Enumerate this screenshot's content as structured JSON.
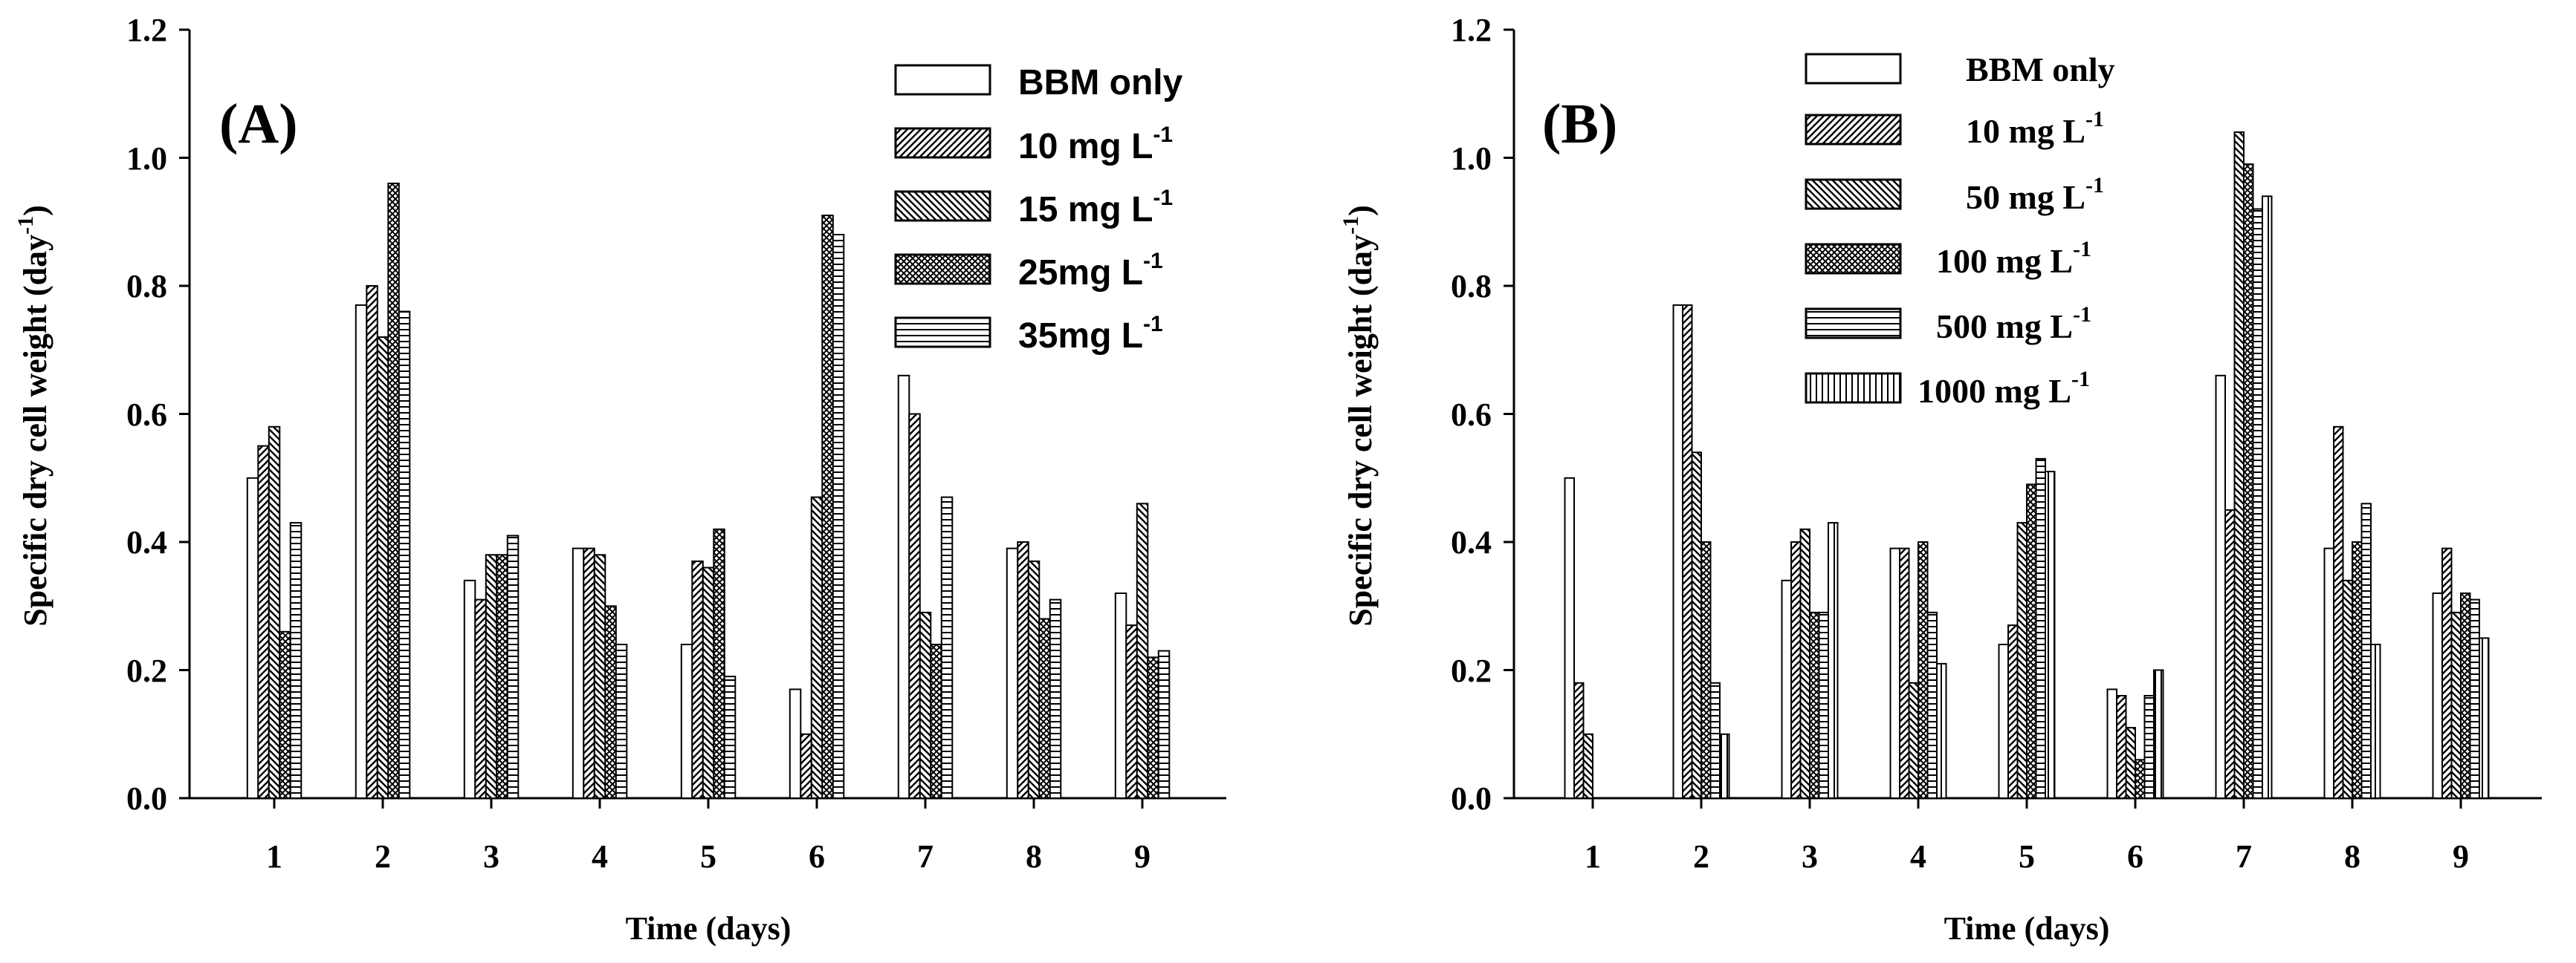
{
  "chart_data": [
    {
      "type": "bar",
      "panel_label": "(A)",
      "xlabel": "Time (days)",
      "ylabel_main": "Specific dry cell weight (day",
      "ylabel_sup": "-1",
      "ylabel_close": ")",
      "ylim": [
        0,
        1.2
      ],
      "yticks": [
        "0.0",
        "0.2",
        "0.4",
        "0.6",
        "0.8",
        "1.0",
        "1.2"
      ],
      "categories": [
        "1",
        "2",
        "3",
        "4",
        "5",
        "6",
        "7",
        "8",
        "9"
      ],
      "legend_position": "top-right",
      "series": [
        {
          "name": "BBM only",
          "label_main": "BBM only",
          "label_sup": "",
          "pattern": "none",
          "values": [
            0.5,
            0.77,
            0.34,
            0.39,
            0.24,
            0.17,
            0.66,
            0.39,
            0.32
          ]
        },
        {
          "name": "10 mg L-1",
          "label_main": "10 mg L",
          "label_sup": "-1",
          "pattern": "hatch-ne",
          "values": [
            0.55,
            0.8,
            0.31,
            0.39,
            0.37,
            0.1,
            0.6,
            0.4,
            0.27
          ]
        },
        {
          "name": "15 mg L-1",
          "label_main": "15 mg L",
          "label_sup": "-1",
          "pattern": "hatch-nw",
          "values": [
            0.58,
            0.72,
            0.38,
            0.38,
            0.36,
            0.47,
            0.29,
            0.37,
            0.46
          ]
        },
        {
          "name": "25mg L-1",
          "label_main": "25mg L",
          "label_sup": "-1",
          "pattern": "cross",
          "values": [
            0.26,
            0.96,
            0.38,
            0.3,
            0.42,
            0.91,
            0.24,
            0.28,
            0.22
          ]
        },
        {
          "name": "35mg L-1",
          "label_main": "35mg L",
          "label_sup": "-1",
          "pattern": "horiz",
          "values": [
            0.43,
            0.76,
            0.41,
            0.24,
            0.19,
            0.88,
            0.47,
            0.31,
            0.23
          ]
        }
      ]
    },
    {
      "type": "bar",
      "panel_label": "(B)",
      "xlabel": "Time (days)",
      "ylabel_main": "Specific dry cell weight (day",
      "ylabel_sup": "-1",
      "ylabel_close": ")",
      "ylim": [
        0,
        1.2
      ],
      "yticks": [
        "0.0",
        "0.2",
        "0.4",
        "0.6",
        "0.8",
        "1.0",
        "1.2"
      ],
      "categories": [
        "1",
        "2",
        "3",
        "4",
        "5",
        "6",
        "7",
        "8",
        "9"
      ],
      "legend_position": "top-center",
      "series": [
        {
          "name": "BBM only",
          "label_main": "BBM only",
          "label_sup": "",
          "pattern": "none",
          "values": [
            0.5,
            0.77,
            0.34,
            0.39,
            0.24,
            0.17,
            0.66,
            0.39,
            0.32
          ]
        },
        {
          "name": "10 mg L-1",
          "label_main": "10 mg L",
          "label_sup": "-1",
          "pattern": "hatch-ne",
          "values": [
            0.18,
            0.77,
            0.4,
            0.39,
            0.27,
            0.16,
            0.45,
            0.58,
            0.39
          ]
        },
        {
          "name": "50 mg L-1",
          "label_main": "50 mg L",
          "label_sup": "-1",
          "pattern": "hatch-nw",
          "values": [
            0.1,
            0.54,
            0.42,
            0.18,
            0.43,
            0.11,
            1.04,
            0.34,
            0.29
          ]
        },
        {
          "name": "100 mg L-1",
          "label_main": "100 mg L",
          "label_sup": "-1",
          "pattern": "cross",
          "values": [
            0.0,
            0.4,
            0.29,
            0.4,
            0.49,
            0.06,
            0.99,
            0.4,
            0.32
          ]
        },
        {
          "name": "500 mg L-1",
          "label_main": "500 mg L",
          "label_sup": "-1",
          "pattern": "horiz",
          "values": [
            0.0,
            0.18,
            0.29,
            0.29,
            0.53,
            0.16,
            0.92,
            0.46,
            0.31
          ]
        },
        {
          "name": "1000 mg L-1",
          "label_main": "1000 mg L",
          "label_sup": "-1",
          "pattern": "vert",
          "values": [
            0.0,
            0.1,
            0.43,
            0.21,
            0.51,
            0.2,
            0.94,
            0.24,
            0.25
          ]
        }
      ]
    }
  ]
}
